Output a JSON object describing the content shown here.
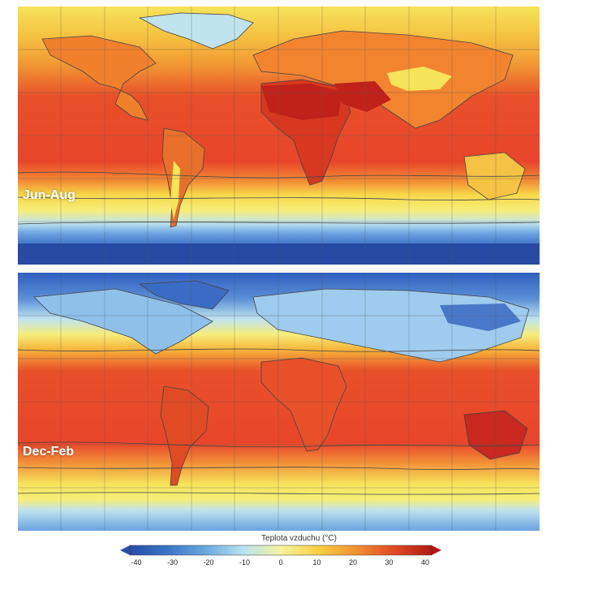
{
  "maps": [
    {
      "season": "Jun-Aug"
    },
    {
      "season": "Dec-Feb"
    }
  ],
  "colorbar": {
    "title": "Teplota vzduchu (°C)",
    "ticks": [
      "-40",
      "-30",
      "-20",
      "-10",
      "0",
      "10",
      "20",
      "30",
      "40"
    ],
    "colors": [
      "#2a4ea8",
      "#3a74c8",
      "#6aa8e0",
      "#b8e2f0",
      "#f6f4a0",
      "#f6d040",
      "#f29030",
      "#e04a24",
      "#b01a14"
    ]
  },
  "palette": {
    "ocean_warm": "#e8402a",
    "warm": "#f07a2c",
    "mild": "#f6b23a",
    "temperate": "#f6e45a",
    "cool": "#bfe3ef",
    "cold": "#5a8fd6",
    "polar": "#2b55b0",
    "hot": "#c8281e"
  }
}
